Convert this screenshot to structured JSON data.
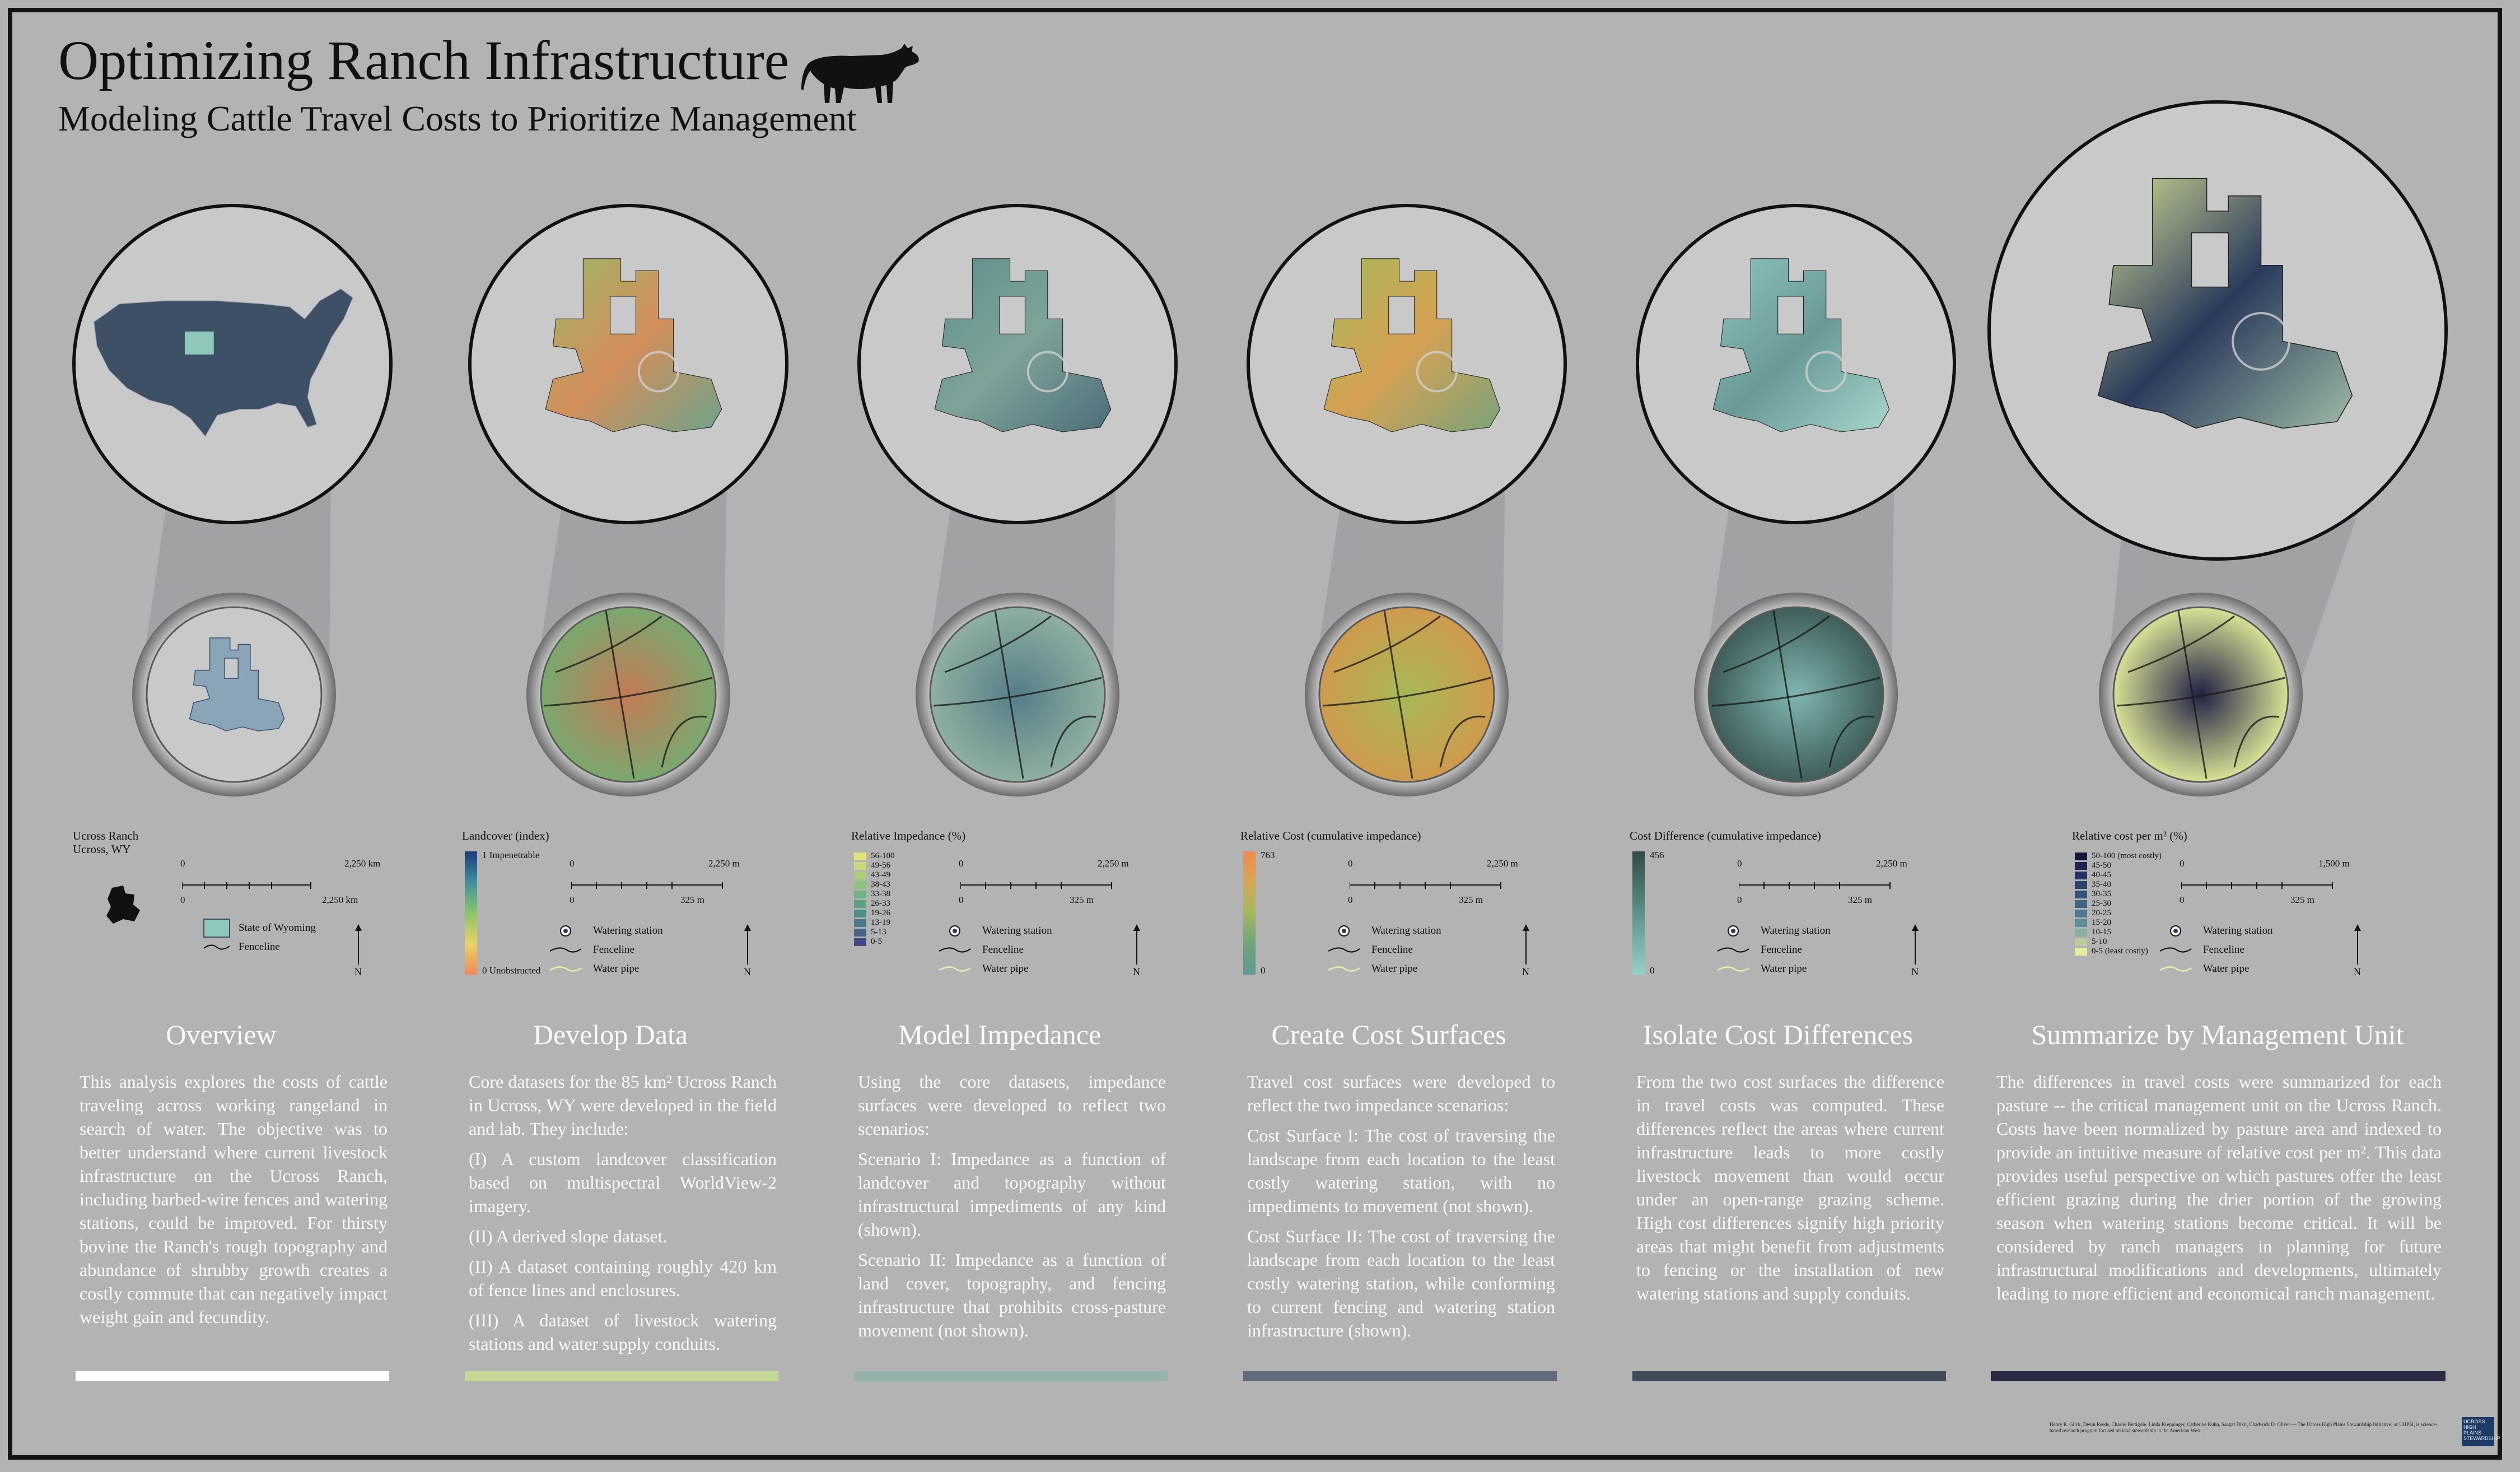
{
  "poster": {
    "title": "Optimizing Ranch Infrastructure",
    "subtitle": "Modeling Cattle Travel Costs to Prioritize Management",
    "credits": "Henry R. Glick, Devin Reeds, Charlie Bettigole, Linda Kreppinger, Catherine Kuhn, Saagar Dixit, Chadwick D. Oliver — The Ucross High Plains Stewardship Initiative, or UHPSI, is science-based research program focused on land stewardship in the American West.",
    "logo_text": "UCROSS HIGH PLAINS STEWARDSHIP"
  },
  "colors": {
    "background": "#b3b3b3",
    "overview_accent": "#ffffff",
    "develop_accent": "#c6d896",
    "impedance_accent": "#98b3ad",
    "cost_accent": "#606c7e",
    "difference_accent": "#3f4b5a",
    "summary_accent": "#2b2a45"
  },
  "sections": [
    {
      "id": "overview",
      "title": "Overview",
      "accent": "#ffffff",
      "legend": {
        "heading": "Ucross Ranch\nUcross, WY",
        "scale_top_left": "0",
        "scale_top_right": "2,250 km",
        "scale_bottom_left": "0",
        "scale_bottom_right": "2,250 km",
        "items": [
          "State of Wyoming",
          "Fenceline"
        ],
        "north": "N"
      },
      "paragraphs": [
        "This analysis explores the costs of cattle traveling across working rangeland in search of water. The objective was to better understand where current livestock infrastructure on the Ucross Ranch, including barbed-wire fences and watering stations, could be improved.  For thirsty bovine the Ranch's rough topography and abundance of shrubby growth creates a costly commute that can negatively impact weight gain and fecundity."
      ]
    },
    {
      "id": "develop-data",
      "title": "Develop Data",
      "accent": "#c6d896",
      "legend": {
        "heading": "Landcover (index)",
        "high_label": "1  Impenetrable",
        "low_label": "0  Unobstructed",
        "gradient": [
          "#1f3c78",
          "#3f8fa0",
          "#8cc46a",
          "#e8d26a",
          "#f0885a"
        ],
        "scale_top_left": "0",
        "scale_top_right": "2,250 m",
        "scale_bottom_left": "0",
        "scale_bottom_right": "325 m",
        "items": [
          "Watering station",
          "Fenceline",
          "Water pipe"
        ],
        "north": "N"
      },
      "paragraphs": [
        "Core datasets for the 85 km² Ucross Ranch in Ucross, WY were developed in the field and lab. They include:",
        "(I) A custom landcover classification based on multispectral WorldView-2 imagery.",
        "(II) A derived slope dataset.",
        "(II) A dataset containing roughly 420 km of fence lines and enclosures.",
        "(III) A dataset of livestock watering stations and water supply conduits."
      ]
    },
    {
      "id": "model-impedance",
      "title": "Model Impedance",
      "accent": "#98b3ad",
      "legend": {
        "heading": "Relative Impedance (%)",
        "classes": [
          {
            "label": "56-100",
            "color": "#e3e07a"
          },
          {
            "label": "49-56",
            "color": "#c9d977"
          },
          {
            "label": "43-49",
            "color": "#aacf78"
          },
          {
            "label": "38-43",
            "color": "#8cc47c"
          },
          {
            "label": "33-38",
            "color": "#70b482"
          },
          {
            "label": "26-33",
            "color": "#5aa286"
          },
          {
            "label": "19-26",
            "color": "#4d8e89"
          },
          {
            "label": "13-19",
            "color": "#4a798a"
          },
          {
            "label": "5-13",
            "color": "#4a6188"
          },
          {
            "label": "0-5",
            "color": "#3f4a84"
          }
        ],
        "scale_top_left": "0",
        "scale_top_right": "2,250 m",
        "scale_bottom_left": "0",
        "scale_bottom_right": "325 m",
        "items": [
          "Watering station",
          "Fenceline",
          "Water pipe"
        ],
        "north": "N"
      },
      "paragraphs": [
        "Using the core datasets, impedance surfaces were developed to reflect two scenarios:",
        "Scenario I: Impedance as a function of landcover and topography without infrastructural impediments of any kind (shown).",
        "Scenario II: Impedance as a function of land cover, topography, and fencing infrastructure that prohibits cross-pasture movement (not shown)."
      ]
    },
    {
      "id": "cost-surfaces",
      "title": "Create Cost Surfaces",
      "accent": "#606c7e",
      "legend": {
        "heading": "Relative Cost (cumulative impedance)",
        "high_label": "763",
        "low_label": "0",
        "gradient": [
          "#f08a52",
          "#d7a65a",
          "#a4b95e",
          "#6fa57a",
          "#5f9a92"
        ],
        "scale_top_left": "0",
        "scale_top_right": "2,250 m",
        "scale_bottom_left": "0",
        "scale_bottom_right": "325 m",
        "items": [
          "Watering station",
          "Fenceline",
          "Water pipe"
        ],
        "north": "N"
      },
      "paragraphs": [
        "Travel cost surfaces were developed to reflect the two impedance scenarios:",
        "Cost Surface I: The cost of traversing the landscape from each location to the least costly watering station, with no impediments to movement (not shown).",
        "Cost Surface II: The cost of traversing the landscape from each location to the least costly watering station, while conforming to current fencing and watering station infrastructure (shown)."
      ]
    },
    {
      "id": "cost-differences",
      "title": "Isolate Cost Differences",
      "accent": "#3f4b5a",
      "legend": {
        "heading": "Cost Difference (cumulative impedance)",
        "high_label": "456",
        "low_label": "0",
        "gradient": [
          "#314a48",
          "#4b7a72",
          "#6fa8a0",
          "#94d1c8"
        ],
        "scale_top_left": "0",
        "scale_top_right": "2,250 m",
        "scale_bottom_left": "0",
        "scale_bottom_right": "325 m",
        "items": [
          "Watering station",
          "Fenceline",
          "Water pipe"
        ],
        "north": "N"
      },
      "paragraphs": [
        "From the two cost surfaces the difference in travel costs was computed. These differences reflect the areas where current infrastructure leads to more costly livestock movement than would occur under an open-range grazing scheme. High cost differences signify high priority areas that might benefit from adjustments to fencing or the installation of new watering stations and supply conduits."
      ]
    },
    {
      "id": "management-unit",
      "title": "Summarize by Management Unit",
      "accent": "#2b2a45",
      "legend": {
        "heading": "Relative cost per m² (%)",
        "classes": [
          {
            "label": "50-100 (most costly)",
            "color": "#15183a"
          },
          {
            "label": "45-50",
            "color": "#1d2550"
          },
          {
            "label": "40-45",
            "color": "#24345f"
          },
          {
            "label": "35-40",
            "color": "#2c436c"
          },
          {
            "label": "30-35",
            "color": "#335379"
          },
          {
            "label": "25-30",
            "color": "#3e6586"
          },
          {
            "label": "20-25",
            "color": "#4c7890"
          },
          {
            "label": "15-20",
            "color": "#5e8e98"
          },
          {
            "label": "10-15",
            "color": "#8ab0a0"
          },
          {
            "label": "5-10",
            "color": "#b9cd9c"
          },
          {
            "label": "0-5 (least costly)",
            "color": "#e8ec9c"
          }
        ],
        "scale_top_left": "0",
        "scale_top_right": "1,500 m",
        "scale_bottom_left": "0",
        "scale_bottom_right": "325 m",
        "items": [
          "Watering station",
          "Fenceline",
          "Water pipe"
        ],
        "north": "N"
      },
      "paragraphs": [
        "The differences in travel costs were summarized for each pasture -- the critical management unit on the Ucross Ranch. Costs have been normalized by pasture area and indexed to provide an intuitive measure of relative cost per m². This data provides useful perspective on which pastures offer the least efficient grazing during the drier portion of the growing season when watering stations become critical. It will be considered by ranch managers in planning for future infrastructural modifications and developments, ultimately leading to more efficient and economical ranch management."
      ]
    }
  ]
}
